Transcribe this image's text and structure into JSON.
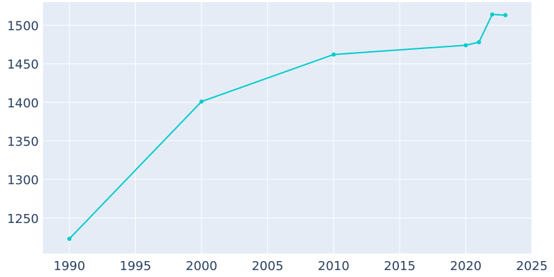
{
  "chart_data": {
    "type": "line",
    "title": "",
    "xlabel": "",
    "ylabel": "",
    "x": [
      1990,
      2000,
      2010,
      2020,
      2021,
      2022,
      2023
    ],
    "series": [
      {
        "values": [
          1223,
          1401,
          1462,
          1474,
          1478,
          1514,
          1513
        ]
      }
    ],
    "xlim": [
      1988,
      2025
    ],
    "ylim": [
      1204,
      1530
    ],
    "x_ticks": [
      "1990",
      "1995",
      "2000",
      "2005",
      "2010",
      "2015",
      "2020",
      "2025"
    ],
    "y_ticks": [
      "1250",
      "1300",
      "1350",
      "1400",
      "1450",
      "1500"
    ],
    "grid": true,
    "legend": "none",
    "colors": {
      "line": "#00cccc",
      "plot_bg": "#e5ecf6",
      "grid": "#ffffff",
      "text": "#2a3f5f"
    }
  }
}
